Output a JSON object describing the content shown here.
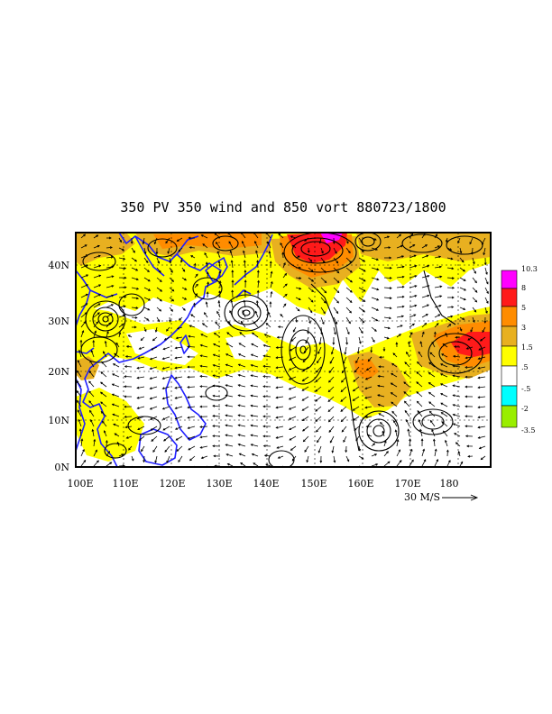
{
  "title": "350 PV 350 wind and 850 vort 880723/1800",
  "x_ticks": [
    "100E",
    "110E",
    "120E",
    "130E",
    "140E",
    "150E",
    "160E",
    "170E",
    "180"
  ],
  "y_ticks": [
    "0N",
    "10N",
    "20N",
    "30N",
    "40N"
  ],
  "reference_vector": {
    "label": "30 M/S"
  },
  "colorbar": {
    "labels": [
      "10.3",
      "8",
      "5",
      "3",
      "1.5",
      ".5",
      "-.5",
      "-2",
      "-3.5"
    ],
    "colors": [
      "#ff00ff",
      "#ff1a1a",
      "#ff8c00",
      "#e8b020",
      "#ffff00",
      "#ffffff",
      "#00ffff",
      "#99ee00"
    ]
  },
  "colors": {
    "coastline": "#1f1fff",
    "contour": "#000000",
    "frame": "#000000"
  }
}
